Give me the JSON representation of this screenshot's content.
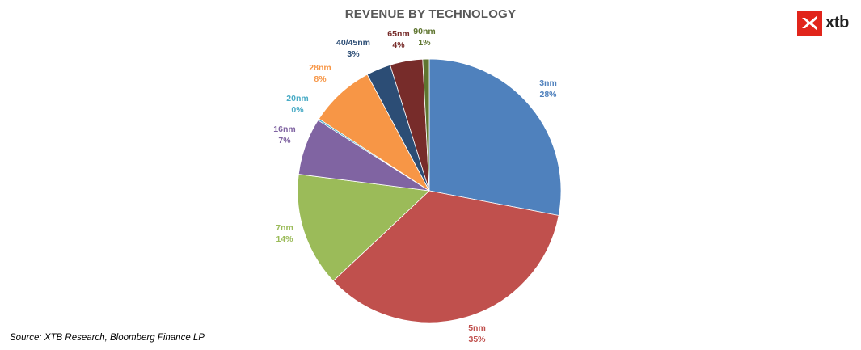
{
  "logo": {
    "text": "xtb",
    "mark_color": "#e1251b",
    "icon": "xtb-x-mark-icon"
  },
  "source": "Source: XTB Research, Bloomberg Finance LP",
  "chart_data": {
    "type": "pie",
    "title": "REVENUE BY TECHNOLOGY",
    "slices": [
      {
        "name": "3nm",
        "value": 28,
        "label": "28%",
        "color": "#4f81bd"
      },
      {
        "name": "5nm",
        "value": 35,
        "label": "35%",
        "color": "#c0504d"
      },
      {
        "name": "7nm",
        "value": 14,
        "label": "14%",
        "color": "#9bbb59"
      },
      {
        "name": "16nm",
        "value": 7,
        "label": "7%",
        "color": "#8064a2"
      },
      {
        "name": "20nm",
        "value": 0.2,
        "label": "0%",
        "color": "#4bacc6"
      },
      {
        "name": "28nm",
        "value": 8,
        "label": "8%",
        "color": "#f79646"
      },
      {
        "name": "40/45nm",
        "value": 3,
        "label": "3%",
        "color": "#2c4d75"
      },
      {
        "name": "65nm",
        "value": 4,
        "label": "4%",
        "color": "#772c2a"
      },
      {
        "name": "90nm",
        "value": 0.8,
        "label": "1%",
        "color": "#5f7530"
      }
    ],
    "start_angle_deg": 0,
    "direction": "clockwise",
    "legend": "none",
    "data_labels": "outside"
  }
}
